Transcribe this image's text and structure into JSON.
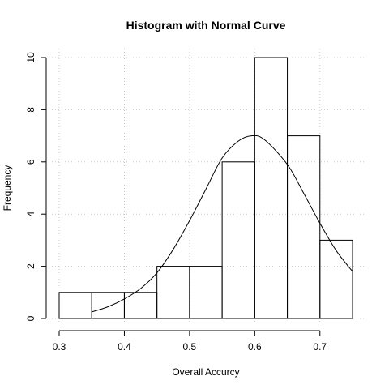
{
  "chart_data": {
    "type": "bar",
    "title": "Histogram with Normal Curve",
    "xlabel": "Overall Accurcy",
    "ylabel": "Frequency",
    "xlim": [
      0.3,
      0.75
    ],
    "ylim": [
      0,
      10
    ],
    "bins": [
      {
        "x0": 0.3,
        "x1": 0.35,
        "count": 1
      },
      {
        "x0": 0.35,
        "x1": 0.4,
        "count": 1
      },
      {
        "x0": 0.4,
        "x1": 0.45,
        "count": 1
      },
      {
        "x0": 0.45,
        "x1": 0.5,
        "count": 2
      },
      {
        "x0": 0.5,
        "x1": 0.55,
        "count": 2
      },
      {
        "x0": 0.55,
        "x1": 0.6,
        "count": 6
      },
      {
        "x0": 0.6,
        "x1": 0.65,
        "count": 10
      },
      {
        "x0": 0.65,
        "x1": 0.7,
        "count": 7
      },
      {
        "x0": 0.7,
        "x1": 0.75,
        "count": 3
      }
    ],
    "x_ticks": [
      "0.3",
      "0.4",
      "0.5",
      "0.6",
      "0.7"
    ],
    "y_ticks": [
      "0",
      "2",
      "4",
      "6",
      "8",
      "10"
    ],
    "normal_curve": {
      "x": [
        0.35,
        0.375,
        0.4,
        0.425,
        0.45,
        0.475,
        0.5,
        0.525,
        0.55,
        0.575,
        0.595,
        0.615,
        0.65,
        0.675,
        0.7,
        0.725,
        0.75
      ],
      "y": [
        0.25,
        0.45,
        0.75,
        1.15,
        1.75,
        2.65,
        3.75,
        4.95,
        6.15,
        6.8,
        7.0,
        6.85,
        5.9,
        4.8,
        3.65,
        2.6,
        1.8
      ]
    },
    "grid": true
  }
}
